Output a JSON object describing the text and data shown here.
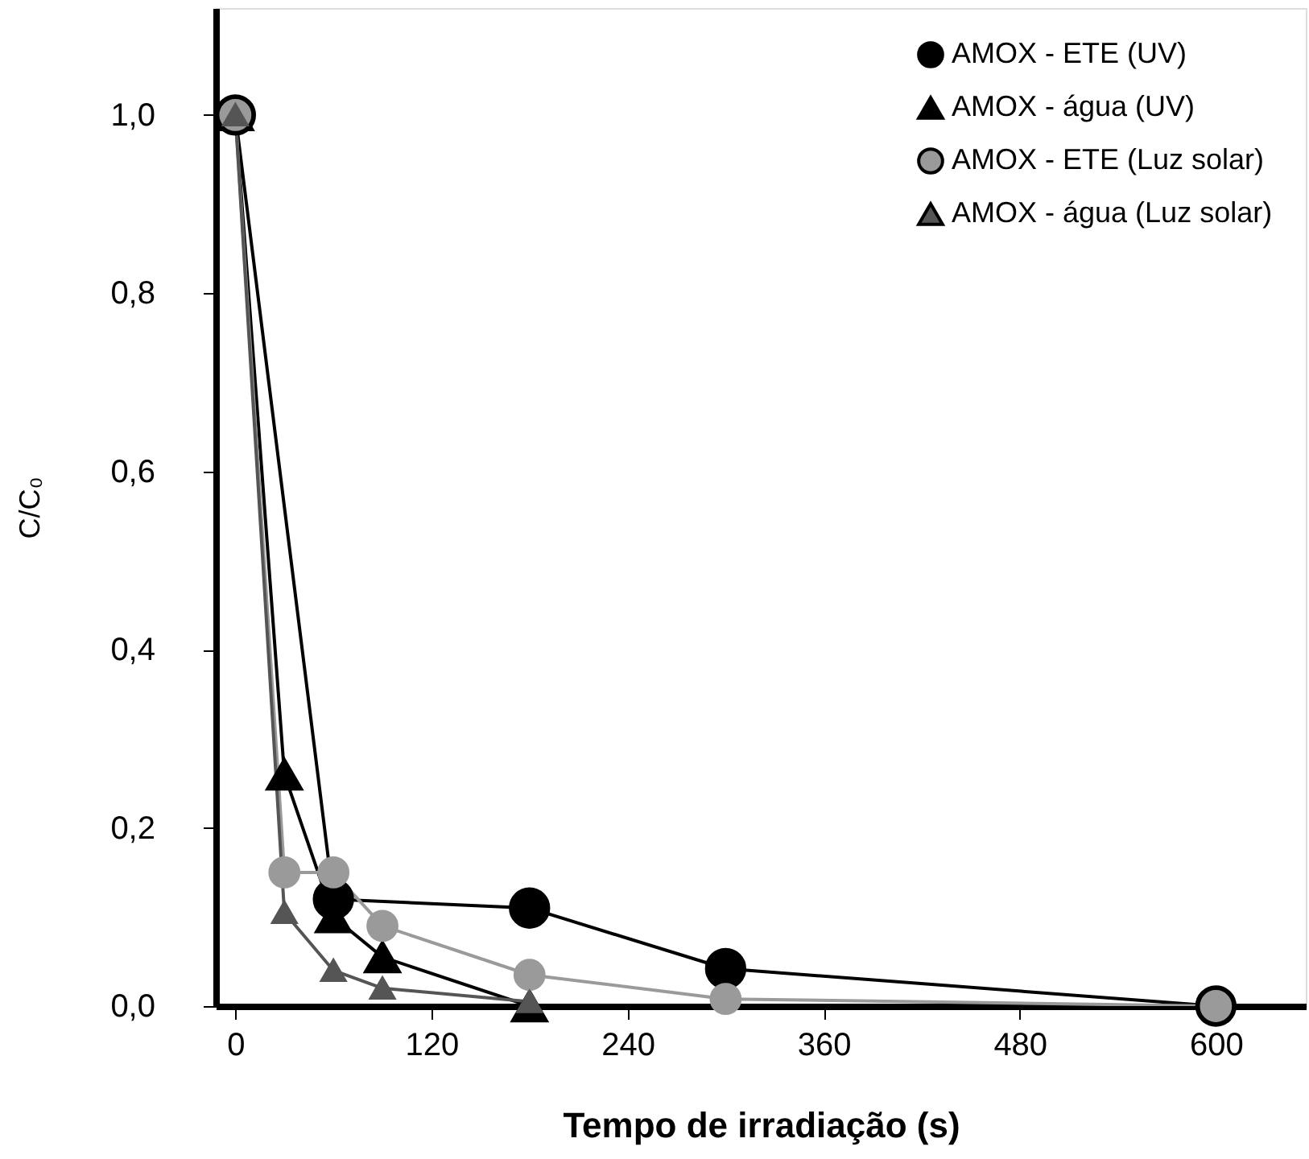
{
  "chart_data": {
    "type": "line",
    "xlabel": "Tempo de irradiação  (s)",
    "ylabel": "C/C₀",
    "xlim": [
      -12,
      655
    ],
    "ylim": [
      0,
      1.12
    ],
    "xticks": [
      0,
      120,
      240,
      360,
      480,
      600
    ],
    "yticks": [
      {
        "value": 0,
        "label": "0,0"
      },
      {
        "value": 0.2,
        "label": "0,2"
      },
      {
        "value": 0.4,
        "label": "0,4"
      },
      {
        "value": 0.6,
        "label": "0,6"
      },
      {
        "value": 0.8,
        "label": "0,8"
      },
      {
        "value": 1.0,
        "label": "1,0"
      }
    ],
    "grid": false,
    "legend": "top right",
    "line_style": "solid",
    "series": [
      {
        "name": "AMOX - ETE (UV)",
        "color": "#000000",
        "marker": "circle",
        "x": [
          0,
          60,
          180,
          300,
          600
        ],
        "values": [
          1.0,
          0.12,
          0.11,
          0.042,
          0.0
        ]
      },
      {
        "name": "AMOX - água (UV)",
        "color": "#000000",
        "marker": "triangle",
        "x": [
          0,
          30,
          60,
          90,
          180
        ],
        "values": [
          1.0,
          0.26,
          0.1,
          0.055,
          0.0
        ]
      },
      {
        "name": "AMOX - ETE (Luz solar)",
        "color": "#9a9a9a",
        "marker": "circle",
        "x": [
          0,
          30,
          60,
          90,
          180,
          300,
          600
        ],
        "values": [
          1.0,
          0.15,
          0.15,
          0.09,
          0.035,
          0.008,
          0.0
        ]
      },
      {
        "name": "AMOX - água (Luz solar)",
        "color": "#555555",
        "marker": "triangle",
        "x": [
          0,
          30,
          60,
          90,
          180
        ],
        "values": [
          1.0,
          0.105,
          0.04,
          0.02,
          0.005
        ]
      }
    ]
  }
}
